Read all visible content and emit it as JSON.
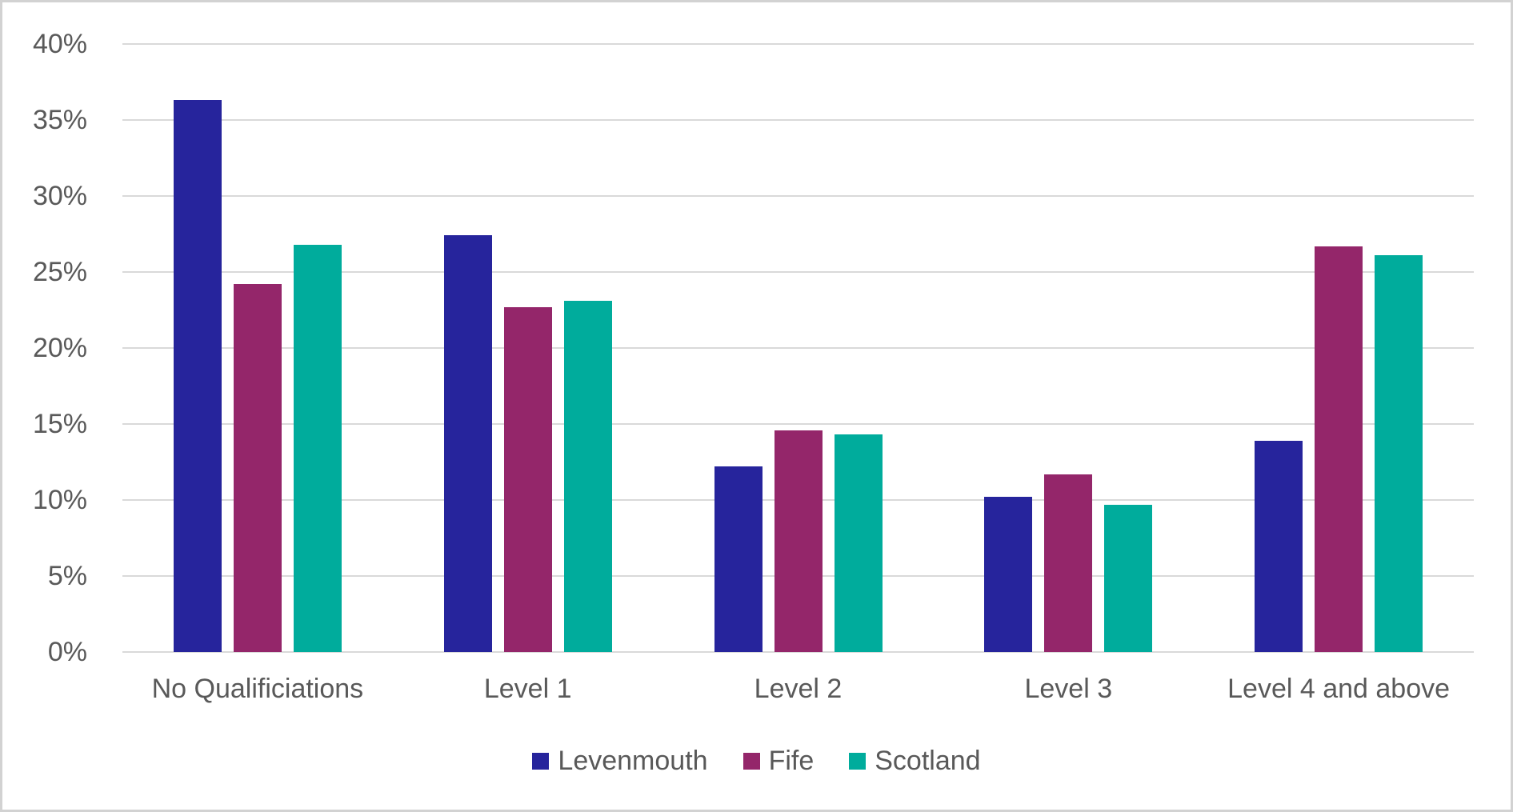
{
  "chart_data": {
    "type": "bar",
    "title": "",
    "xlabel": "",
    "ylabel": "",
    "categories": [
      "No Qualificiations",
      "Level 1",
      "Level 2",
      "Level 3",
      "Level 4 and above"
    ],
    "series": [
      {
        "name": "Levenmouth",
        "color": "#26249C",
        "values": [
          36.3,
          27.4,
          12.2,
          10.2,
          13.9
        ]
      },
      {
        "name": "Fife",
        "color": "#94266A",
        "values": [
          24.2,
          22.7,
          14.6,
          11.7,
          26.7
        ]
      },
      {
        "name": "Scotland",
        "color": "#00AC9C",
        "values": [
          26.8,
          23.1,
          14.3,
          9.7,
          26.1
        ]
      }
    ],
    "ylim": [
      0,
      40
    ],
    "ytick_step": 5,
    "ytick_labels": [
      "0%",
      "5%",
      "10%",
      "15%",
      "20%",
      "25%",
      "30%",
      "35%",
      "40%"
    ],
    "grid": true,
    "legend_position": "bottom",
    "colors": {
      "axis_text": "#595959",
      "gridline": "#D9D9D9",
      "frame_border": "#D2D2D2",
      "background": "#FFFFFF"
    }
  }
}
